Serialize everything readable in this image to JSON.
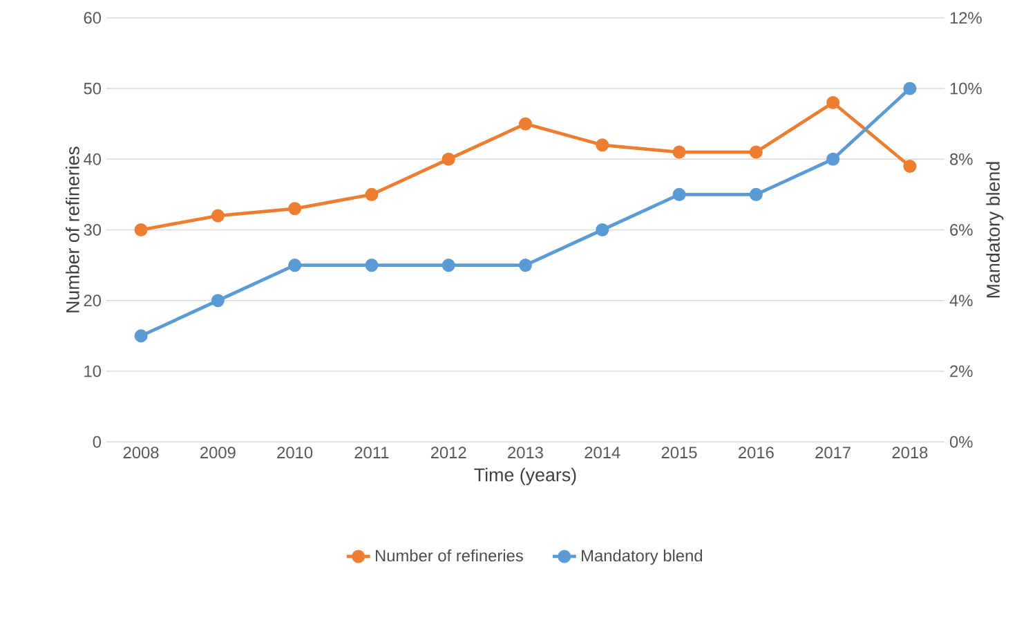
{
  "chart_data": {
    "type": "line",
    "xlabel": "Time (years)",
    "ylabel": "Number of refineries",
    "y2label": "Mandatory blend",
    "categories": [
      "2008",
      "2009",
      "2010",
      "2011",
      "2012",
      "2013",
      "2014",
      "2015",
      "2016",
      "2017",
      "2018"
    ],
    "series": [
      {
        "name": "Number of refineries",
        "color": "#ed7d31",
        "values": [
          30,
          32,
          33,
          35,
          40,
          45,
          42,
          41,
          41,
          48,
          39
        ]
      },
      {
        "name": "Mandatory blend",
        "color": "#5b9bd5",
        "axis": "y2",
        "values": [
          3,
          4,
          5,
          5,
          5,
          5,
          6,
          7,
          7,
          8,
          10
        ]
      }
    ],
    "ylim": [
      0,
      60
    ],
    "yticks": [
      0,
      10,
      20,
      30,
      40,
      50,
      60
    ],
    "y2lim": [
      0,
      12
    ],
    "y2ticks": [
      {
        "value": 0,
        "label": "0%"
      },
      {
        "value": 2,
        "label": "2%"
      },
      {
        "value": 4,
        "label": "4%"
      },
      {
        "value": 6,
        "label": "6%"
      },
      {
        "value": 8,
        "label": "8%"
      },
      {
        "value": 10,
        "label": "10%"
      },
      {
        "value": 12,
        "label": "12%"
      }
    ],
    "grid": "y",
    "legend": "bottom",
    "marker": "circle",
    "line_style": "solid"
  }
}
